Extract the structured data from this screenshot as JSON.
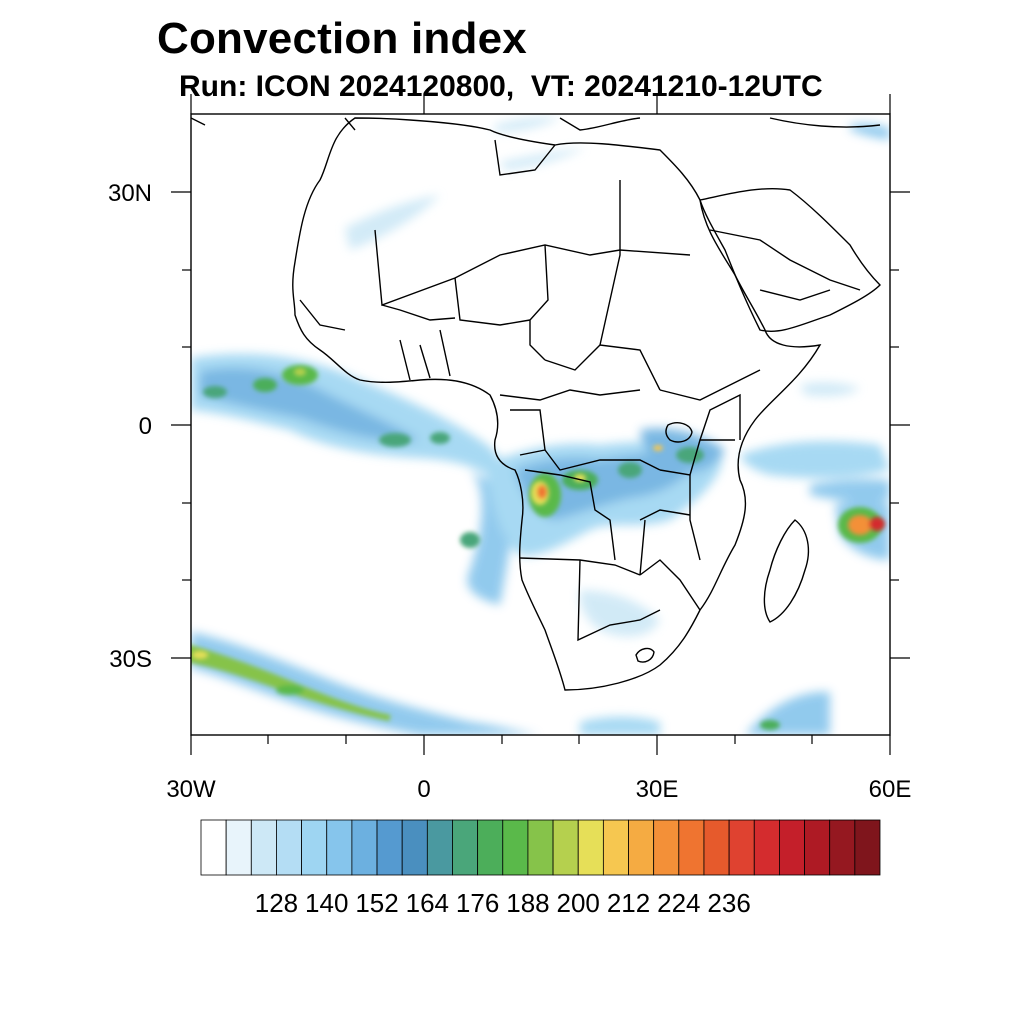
{
  "header": {
    "title": "Convection index",
    "subtitle": "Run: ICON 2024120800,  VT: 20241210-12UTC"
  },
  "map": {
    "lon_range": [
      -30,
      60
    ],
    "lat_range": [
      -40,
      40
    ],
    "x_tick_labels": [
      "30W",
      "0",
      "30E",
      "60E"
    ],
    "y_tick_labels": [
      "30N",
      "0",
      "30S"
    ]
  },
  "colorbar": {
    "colors": [
      "#ffffff",
      "#e8f4fb",
      "#cde8f6",
      "#b4ddf4",
      "#9ed5f2",
      "#86c5ec",
      "#6cb0e0",
      "#559ad0",
      "#4a8fbf",
      "#4a99a0",
      "#4aa67a",
      "#4cae5a",
      "#5ab94a",
      "#86c34a",
      "#b5d04e",
      "#e6df58",
      "#f6c750",
      "#f5ab42",
      "#f39038",
      "#ef7430",
      "#e65a2c",
      "#df4230",
      "#d42c2e",
      "#c41f2a",
      "#ae1a24",
      "#951820",
      "#7f151c"
    ],
    "labels": [
      "128",
      "140",
      "152",
      "164",
      "176",
      "188",
      "200",
      "212",
      "224",
      "236"
    ]
  }
}
